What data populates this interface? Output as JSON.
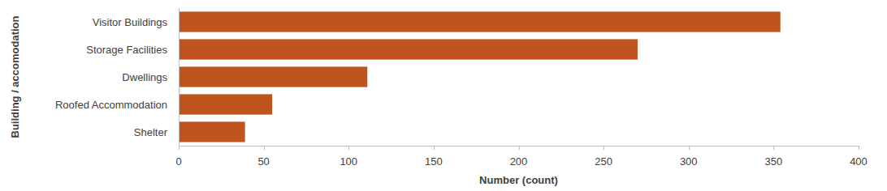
{
  "chart_data": {
    "type": "bar",
    "orientation": "horizontal",
    "categories": [
      "Visitor Buildings",
      "Storage Facilities",
      "Dwellings",
      "Roofed Accommodation",
      "Shelter"
    ],
    "values": [
      354,
      270,
      111,
      55,
      39
    ],
    "color": "#c0541e",
    "x_label": "Number (count)",
    "y_label": "Building / accomodation",
    "xlim": [
      0,
      400
    ],
    "xticks": [
      0,
      50,
      100,
      150,
      200,
      250,
      300,
      350,
      400
    ],
    "grid": false
  }
}
